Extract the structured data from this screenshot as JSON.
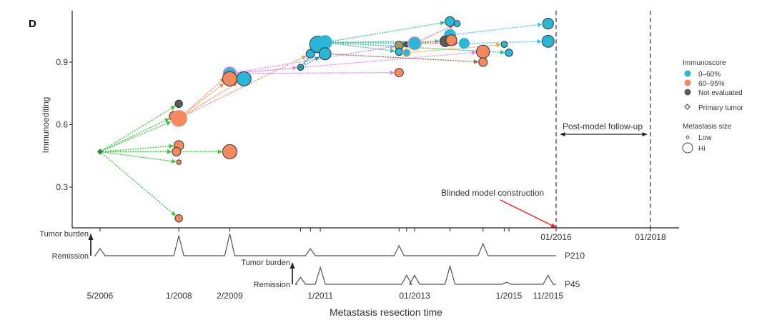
{
  "chart_data": {
    "type": "scatter",
    "panel_label": "D",
    "title": "",
    "xlabel": "Metastasis resection time",
    "ylabel": "Immunoediting",
    "ylim": [
      0.12,
      1.1
    ],
    "yticks": [
      0.3,
      0.6,
      0.9
    ],
    "ytick_labels": [
      "0.3",
      "0.6",
      "0.9"
    ],
    "xlim": [
      2005.5,
      2019.2
    ],
    "xticks_top": [
      {
        "x": 2006.33,
        "label": ""
      },
      {
        "x": 2008.0,
        "label": ""
      },
      {
        "x": 2009.08,
        "label": ""
      },
      {
        "x": 2010.58,
        "label": ""
      },
      {
        "x": 2010.79,
        "label": ""
      },
      {
        "x": 2011.0,
        "label": ""
      },
      {
        "x": 2012.67,
        "label": ""
      },
      {
        "x": 2012.83,
        "label": ""
      },
      {
        "x": 2013.0,
        "label": ""
      },
      {
        "x": 2013.75,
        "label": ""
      },
      {
        "x": 2014.45,
        "label": ""
      },
      {
        "x": 2014.9,
        "label": ""
      },
      {
        "x": 2015.0,
        "label": ""
      },
      {
        "x": 2016.0,
        "label": "01/2016"
      },
      {
        "x": 2018.0,
        "label": "01/2018"
      }
    ],
    "xticks_bottom": [
      {
        "x": 2006.33,
        "label": "5/2006"
      },
      {
        "x": 2008.0,
        "label": "1/2008"
      },
      {
        "x": 2009.08,
        "label": "2/2009"
      },
      {
        "x": 2011.0,
        "label": "1/2011"
      },
      {
        "x": 2013.0,
        "label": "01/2013"
      },
      {
        "x": 2015.0,
        "label": "1/2015"
      },
      {
        "x": 2015.83,
        "label": "11/2015"
      }
    ],
    "vlines": [
      2016.0,
      2018.0
    ],
    "annotations": {
      "followup": "Post-model follow-up",
      "blinded": "Blinded model construction"
    },
    "legend": {
      "placement": "right",
      "immunoscore_title": "Immunoscore",
      "immunoscore": [
        {
          "label": "0–60%",
          "color": "#2bb5d6"
        },
        {
          "label": "60–95%",
          "color": "#f4895f"
        },
        {
          "label": "Not evaluated",
          "color": "#595959"
        }
      ],
      "primary_label": "Primary tumor",
      "size_title": "Metastasis size",
      "size_low": "Low",
      "size_hi": "Hi"
    },
    "points": [
      {
        "id": "P0",
        "x": 2006.33,
        "y": 0.47,
        "size": 0,
        "cls": "primary",
        "color": "#2e8b3e"
      },
      {
        "id": "A1",
        "x": 2008.0,
        "y": 0.7,
        "size": 2,
        "cls": "ne"
      },
      {
        "id": "A2",
        "x": 2007.9,
        "y": 0.64,
        "size": 3,
        "cls": "mid"
      },
      {
        "id": "A3",
        "x": 2008.0,
        "y": 0.63,
        "size": 6,
        "cls": "mid",
        "noborder": true
      },
      {
        "id": "A4",
        "x": 2008.0,
        "y": 0.5,
        "size": 3,
        "cls": "mid"
      },
      {
        "id": "A5",
        "x": 2007.95,
        "y": 0.47,
        "size": 2.5,
        "cls": "mid"
      },
      {
        "id": "A6",
        "x": 2008.0,
        "y": 0.42,
        "size": 0.8,
        "cls": "mid"
      },
      {
        "id": "A7",
        "x": 2008.0,
        "y": 0.15,
        "size": 2,
        "cls": "mid"
      },
      {
        "id": "B1",
        "x": 2009.08,
        "y": 0.47,
        "size": 5,
        "cls": "mid"
      },
      {
        "id": "B2",
        "x": 2009.08,
        "y": 0.845,
        "size": 4.5,
        "cls": "low",
        "noborder": true,
        "ring": "#e77ff0"
      },
      {
        "id": "B3",
        "x": 2009.08,
        "y": 0.82,
        "size": 5,
        "cls": "mid"
      },
      {
        "id": "B4",
        "x": 2009.38,
        "y": 0.82,
        "size": 5,
        "cls": "low"
      },
      {
        "id": "C1",
        "x": 2010.58,
        "y": 0.875,
        "size": 1.5,
        "cls": "low",
        "primary": true
      },
      {
        "id": "C2",
        "x": 2010.79,
        "y": 0.94,
        "size": 2.5,
        "cls": "low"
      },
      {
        "id": "C3",
        "x": 2010.95,
        "y": 0.985,
        "size": 6,
        "cls": "low"
      },
      {
        "id": "C4",
        "x": 2011.1,
        "y": 0.995,
        "size": 5,
        "cls": "low",
        "noborder": true
      },
      {
        "id": "C5",
        "x": 2011.1,
        "y": 0.94,
        "size": 4,
        "cls": "low"
      },
      {
        "id": "D1",
        "x": 2012.67,
        "y": 0.85,
        "size": 2.5,
        "cls": "mid"
      },
      {
        "id": "D2",
        "x": 2012.67,
        "y": 0.98,
        "size": 2.5,
        "cls": "ne",
        "tint": "#9a9a6a"
      },
      {
        "id": "D3",
        "x": 2012.67,
        "y": 0.95,
        "size": 2,
        "cls": "low"
      },
      {
        "id": "D4",
        "x": 2012.83,
        "y": 0.985,
        "size": 1,
        "cls": "ne"
      },
      {
        "id": "D5",
        "x": 2012.83,
        "y": 0.945,
        "size": 2,
        "cls": "low",
        "ring": "#d8b070"
      },
      {
        "id": "D6",
        "x": 2013.0,
        "y": 0.99,
        "size": 4.5,
        "cls": "low",
        "ring": "#e8a0b0"
      },
      {
        "id": "E1",
        "x": 2013.75,
        "y": 1.095,
        "size": 3,
        "cls": "low"
      },
      {
        "id": "E2",
        "x": 2013.9,
        "y": 1.085,
        "size": 1.5,
        "cls": "low"
      },
      {
        "id": "E3",
        "x": 2013.75,
        "y": 1.03,
        "size": 4,
        "cls": "low",
        "noborder": true
      },
      {
        "id": "E4",
        "x": 2013.65,
        "y": 1.0,
        "size": 3.5,
        "cls": "ne"
      },
      {
        "id": "E5",
        "x": 2013.78,
        "y": 1.005,
        "size": 3.5,
        "cls": "mid"
      },
      {
        "id": "E6",
        "x": 2014.05,
        "y": 0.99,
        "size": 3.5,
        "cls": "low",
        "noborder": true
      },
      {
        "id": "F1",
        "x": 2014.45,
        "y": 0.95,
        "size": 4.5,
        "cls": "mid"
      },
      {
        "id": "F2",
        "x": 2014.45,
        "y": 0.9,
        "size": 2.5,
        "cls": "mid"
      },
      {
        "id": "F3",
        "x": 2014.9,
        "y": 0.985,
        "size": 1.5,
        "cls": "low"
      },
      {
        "id": "F4",
        "x": 2015.0,
        "y": 0.945,
        "size": 2,
        "cls": "low"
      },
      {
        "id": "G1",
        "x": 2015.83,
        "y": 1.085,
        "size": 3.5,
        "cls": "low"
      },
      {
        "id": "G2",
        "x": 2015.83,
        "y": 1.0,
        "size": 4,
        "cls": "low"
      }
    ],
    "edges": [
      {
        "from": "P0",
        "to": "A1",
        "color": "#3cc43c"
      },
      {
        "from": "P0",
        "to": "A2",
        "color": "#3cc43c"
      },
      {
        "from": "P0",
        "to": "A3",
        "color": "#3cc43c"
      },
      {
        "from": "P0",
        "to": "A4",
        "color": "#3cc43c"
      },
      {
        "from": "P0",
        "to": "A5",
        "color": "#3cc43c"
      },
      {
        "from": "P0",
        "to": "A6",
        "color": "#3cc43c"
      },
      {
        "from": "P0",
        "to": "A7",
        "color": "#3cc43c"
      },
      {
        "from": "P0",
        "to": "B1",
        "color": "#3cc43c"
      },
      {
        "from": "A3",
        "to": "B2",
        "color": "#f4895f"
      },
      {
        "from": "A3",
        "to": "B3",
        "color": "#f4895f"
      },
      {
        "from": "A3",
        "to": "B4",
        "color": "#f4895f"
      },
      {
        "from": "A3",
        "to": "C2",
        "color": "#f4895f"
      },
      {
        "from": "B2",
        "to": "C1",
        "color": "#e77ff0"
      },
      {
        "from": "B2",
        "to": "D1",
        "color": "#e77ff0"
      },
      {
        "from": "B2",
        "to": "D2",
        "color": "#e77ff0"
      },
      {
        "from": "B2",
        "to": "F1",
        "color": "#e77ff0"
      },
      {
        "from": "C1",
        "to": "C3",
        "color": "#2c8fa8"
      },
      {
        "from": "C1",
        "to": "C4",
        "color": "#2c8fa8"
      },
      {
        "from": "C1",
        "to": "C5",
        "color": "#2c8fa8"
      },
      {
        "from": "C4",
        "to": "E1",
        "color": "#2fbf8c"
      },
      {
        "from": "C4",
        "to": "D3",
        "color": "#2fbf8c"
      },
      {
        "from": "C4",
        "to": "D6",
        "color": "#2fbf8c"
      },
      {
        "from": "C4",
        "to": "E4",
        "color": "#2fbf8c"
      },
      {
        "from": "C4",
        "to": "F4",
        "color": "#2fbf8c"
      },
      {
        "from": "C5",
        "to": "F2",
        "color": "#8b6a4a"
      },
      {
        "from": "D6",
        "to": "E2",
        "color": "#f06060"
      },
      {
        "from": "D6",
        "to": "E5",
        "color": "#f06060"
      },
      {
        "from": "D6",
        "to": "E6",
        "color": "#f06060"
      },
      {
        "from": "D5",
        "to": "F3",
        "color": "#f0a830"
      },
      {
        "from": "E3",
        "to": "G1",
        "color": "#48c0e8"
      },
      {
        "from": "E6",
        "to": "G2",
        "color": "#48c0e8"
      }
    ],
    "timelines": [
      {
        "name": "P210",
        "label_top": "Tumor burden",
        "label_bottom": "Remission",
        "peaks": [
          {
            "x": 2006.33,
            "h": 0.35
          },
          {
            "x": 2008.0,
            "h": 1.0
          },
          {
            "x": 2009.08,
            "h": 1.1
          },
          {
            "x": 2010.79,
            "h": 0.35
          },
          {
            "x": 2012.67,
            "h": 0.5
          },
          {
            "x": 2014.45,
            "h": 0.6
          }
        ],
        "x_end": 2016.0
      },
      {
        "name": "P45",
        "label_top": "Tumor burden",
        "label_bottom": "Remission",
        "peaks": [
          {
            "x": 2010.58,
            "h": 0.35
          },
          {
            "x": 2011.0,
            "h": 0.85
          },
          {
            "x": 2012.83,
            "h": 0.45
          },
          {
            "x": 2013.0,
            "h": 0.45
          },
          {
            "x": 2013.75,
            "h": 0.9
          },
          {
            "x": 2014.95,
            "h": 0.1
          },
          {
            "x": 2015.83,
            "h": 0.45
          }
        ],
        "x_end": 2016.0
      }
    ]
  }
}
